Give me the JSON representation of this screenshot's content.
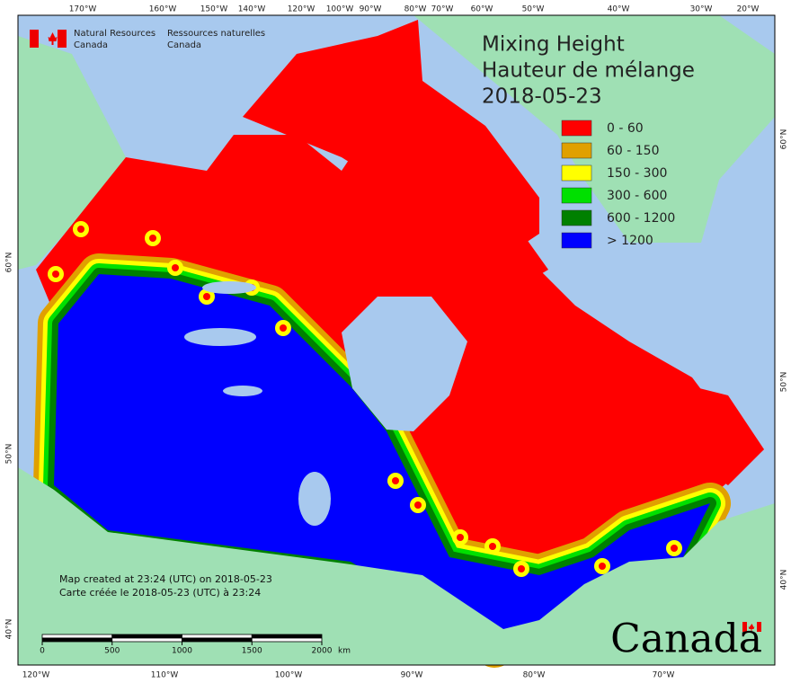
{
  "header": {
    "en_line1": "Natural Resources",
    "en_line2": "Canada",
    "fr_line1": "Ressources naturelles",
    "fr_line2": "Canada"
  },
  "title": {
    "line1": "Mixing Height",
    "line2": "Hauteur de mélange",
    "line3": "2018-05-23"
  },
  "legend": [
    {
      "label": "0 - 60",
      "color": "#ff0000"
    },
    {
      "label": "60 - 150",
      "color": "#e0a000"
    },
    {
      "label": "150 - 300",
      "color": "#ffff00"
    },
    {
      "label": "300 - 600",
      "color": "#00e000"
    },
    {
      "label": "600 - 1200",
      "color": "#008000"
    },
    {
      "label": "> 1200",
      "color": "#0000ff"
    }
  ],
  "graticule": {
    "top": [
      "170°W",
      "160°W",
      "150°W",
      "140°W",
      "120°W",
      "100°W",
      "90°W",
      "80°W",
      "70°W",
      "60°W",
      "50°W",
      "40°W",
      "30°W",
      "20°W"
    ],
    "bottom": [
      "120°W",
      "110°W",
      "100°W",
      "90°W",
      "80°W",
      "70°W"
    ],
    "left": [
      "60°N",
      "50°N",
      "40°N"
    ],
    "right": [
      "60°N",
      "50°N",
      "40°N"
    ]
  },
  "footer": {
    "line1": "Map created at 23:24 (UTC) on 2018-05-23",
    "line2": "Carte créée le 2018-05-23 (UTC) à 23:24"
  },
  "scale": {
    "ticks": [
      0,
      500,
      1000,
      1500,
      2000
    ],
    "unit": "km"
  },
  "wordmark": "Canada"
}
